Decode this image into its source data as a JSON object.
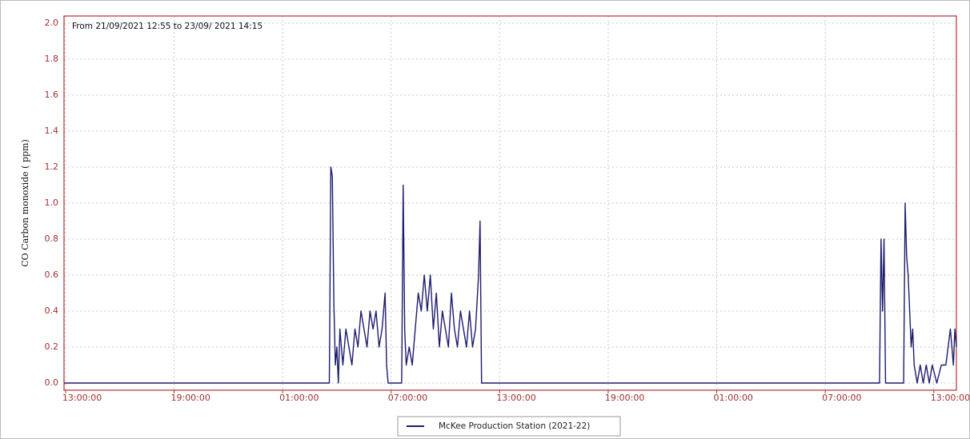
{
  "chart_data": {
    "type": "line",
    "subtitle": "From 21/09/2021 12:55 to 23/09/ 2021 14:15",
    "y_label": "CO Carbon monoxide ( ppm)",
    "grid": true,
    "legend": "bottom",
    "xlim": [
      "2021-09-21T12:55",
      "2021-09-23T14:15"
    ],
    "xticks": [
      {
        "value": "2021-09-21T13:00",
        "label": "13:00:00"
      },
      {
        "value": "2021-09-21T19:00",
        "label": "19:00:00"
      },
      {
        "value": "2021-09-22T01:00",
        "label": "01:00:00"
      },
      {
        "value": "2021-09-22T07:00",
        "label": "07:00:00"
      },
      {
        "value": "2021-09-22T13:00",
        "label": "13:00:00"
      },
      {
        "value": "2021-09-22T19:00",
        "label": "19:00:00"
      },
      {
        "value": "2021-09-23T01:00",
        "label": "01:00:00"
      },
      {
        "value": "2021-09-23T07:00",
        "label": "07:00:00"
      },
      {
        "value": "2021-09-23T13:00",
        "label": "13:00:00"
      }
    ],
    "ylim": [
      -0.04,
      2.04
    ],
    "yticks": [
      {
        "value": 0,
        "label": "0.0"
      },
      0.2,
      0.4,
      0.6,
      0.8,
      {
        "value": 1,
        "label": "1.0"
      },
      1.2,
      1.4,
      1.6,
      1.8,
      {
        "value": 2,
        "label": "2.0"
      }
    ],
    "x": [
      "2021-09-21T12:55",
      "2021-09-22T03:35",
      "2021-09-22T03:40",
      "2021-09-22T03:45",
      "2021-09-22T03:50",
      "2021-09-22T03:55",
      "2021-09-22T04:00",
      "2021-09-22T04:05",
      "2021-09-22T04:10",
      "2021-09-22T04:20",
      "2021-09-22T04:30",
      "2021-09-22T04:40",
      "2021-09-22T04:50",
      "2021-09-22T05:00",
      "2021-09-22T05:10",
      "2021-09-22T05:20",
      "2021-09-22T05:30",
      "2021-09-22T05:40",
      "2021-09-22T05:50",
      "2021-09-22T06:00",
      "2021-09-22T06:10",
      "2021-09-22T06:20",
      "2021-09-22T06:30",
      "2021-09-22T06:40",
      "2021-09-22T06:45",
      "2021-09-22T06:50",
      "2021-09-22T07:35",
      "2021-09-22T07:40",
      "2021-09-22T07:45",
      "2021-09-22T07:50",
      "2021-09-22T08:00",
      "2021-09-22T08:10",
      "2021-09-22T08:20",
      "2021-09-22T08:30",
      "2021-09-22T08:40",
      "2021-09-22T08:50",
      "2021-09-22T09:00",
      "2021-09-22T09:10",
      "2021-09-22T09:20",
      "2021-09-22T09:30",
      "2021-09-22T09:40",
      "2021-09-22T09:50",
      "2021-09-22T10:00",
      "2021-09-22T10:10",
      "2021-09-22T10:20",
      "2021-09-22T10:30",
      "2021-09-22T10:40",
      "2021-09-22T10:50",
      "2021-09-22T11:00",
      "2021-09-22T11:10",
      "2021-09-22T11:20",
      "2021-09-22T11:30",
      "2021-09-22T11:40",
      "2021-09-22T11:50",
      "2021-09-22T11:55",
      "2021-09-22T12:00",
      "2021-09-23T10:00",
      "2021-09-23T10:05",
      "2021-09-23T10:10",
      "2021-09-23T10:15",
      "2021-09-23T10:20",
      "2021-09-23T11:20",
      "2021-09-23T11:25",
      "2021-09-23T11:30",
      "2021-09-23T11:35",
      "2021-09-23T11:40",
      "2021-09-23T11:45",
      "2021-09-23T11:50",
      "2021-09-23T11:55",
      "2021-09-23T12:05",
      "2021-09-23T12:15",
      "2021-09-23T12:25",
      "2021-09-23T12:35",
      "2021-09-23T12:45",
      "2021-09-23T12:55",
      "2021-09-23T13:10",
      "2021-09-23T13:25",
      "2021-09-23T13:40",
      "2021-09-23T13:55",
      "2021-09-23T14:05",
      "2021-09-23T14:10",
      "2021-09-23T14:15"
    ],
    "series": [
      {
        "name": "McKee Production Station (2021-22)",
        "color": "#1c1c6e",
        "values": [
          0,
          0,
          1.2,
          1.15,
          0.45,
          0.1,
          0.2,
          0,
          0.3,
          0.1,
          0.3,
          0.2,
          0.1,
          0.3,
          0.2,
          0.4,
          0.3,
          0.2,
          0.4,
          0.3,
          0.4,
          0.2,
          0.3,
          0.5,
          0.1,
          0,
          0,
          1.1,
          0.3,
          0.1,
          0.2,
          0.1,
          0.3,
          0.5,
          0.4,
          0.6,
          0.4,
          0.6,
          0.3,
          0.5,
          0.2,
          0.4,
          0.3,
          0.2,
          0.5,
          0.3,
          0.2,
          0.4,
          0.3,
          0.2,
          0.4,
          0.2,
          0.3,
          0.6,
          0.9,
          0,
          0,
          0.8,
          0.4,
          0.8,
          0,
          0,
          1.0,
          0.7,
          0.6,
          0.4,
          0.2,
          0.3,
          0.1,
          0,
          0.1,
          0,
          0.1,
          0,
          0.1,
          0,
          0.1,
          0.1,
          0.3,
          0.1,
          0.3,
          0.2
        ]
      }
    ]
  }
}
